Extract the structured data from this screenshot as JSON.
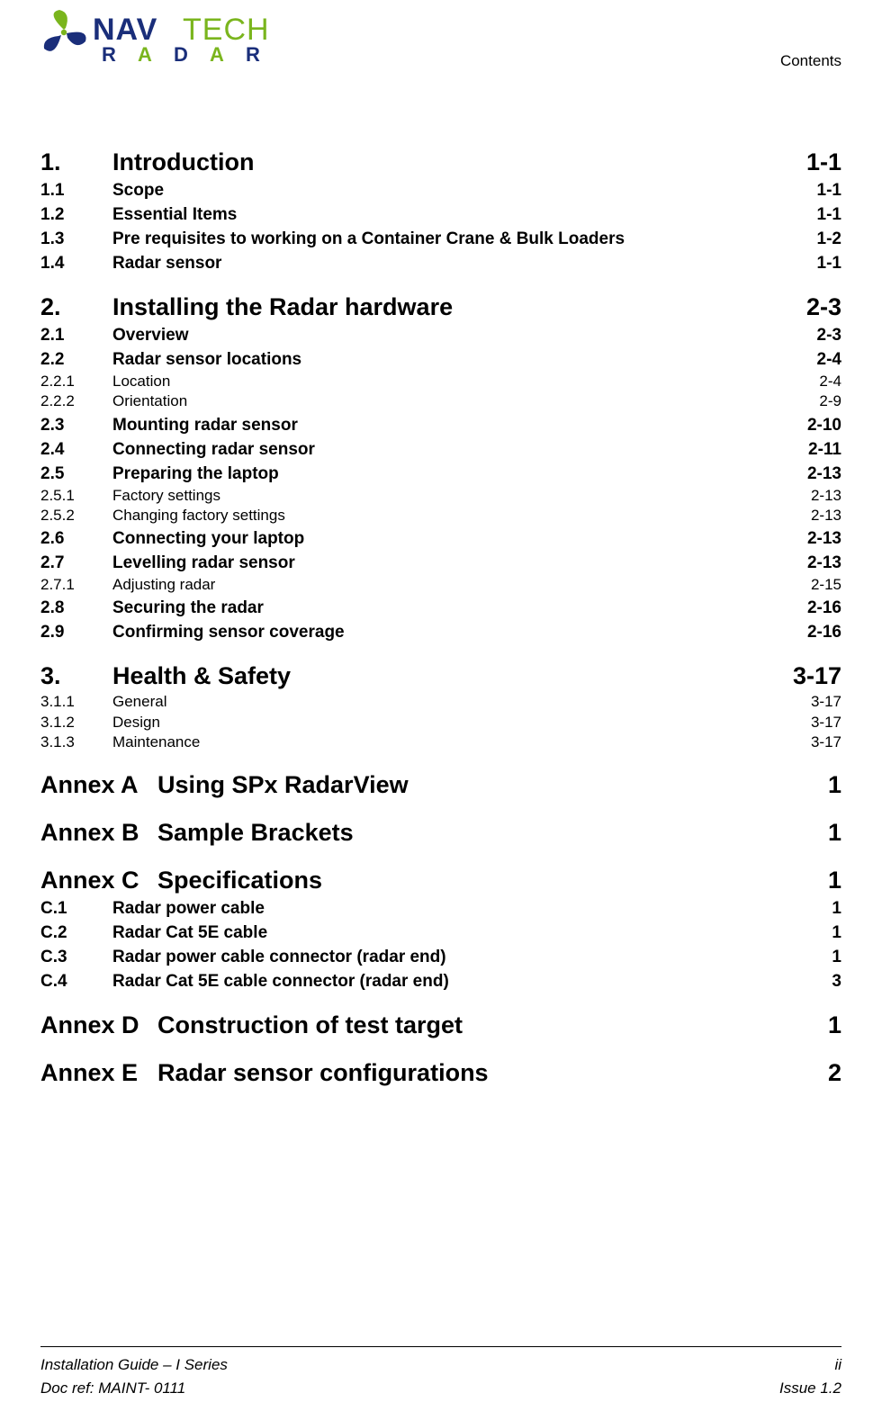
{
  "header": {
    "section_label": "Contents"
  },
  "logo": {
    "nav_color": "#1a2e7a",
    "tech_color": "#7ab51d",
    "radar_colors": [
      "#1a2e7a",
      "#7ab51d"
    ]
  },
  "toc": [
    {
      "level": 1,
      "num": "1.",
      "title": "Introduction",
      "page": "1-1"
    },
    {
      "level": 2,
      "num": "1.1",
      "title": "Scope",
      "page": "1-1"
    },
    {
      "level": 2,
      "num": "1.2",
      "title": "Essential Items",
      "page": "1-1"
    },
    {
      "level": 2,
      "num": "1.3",
      "title": "Pre requisites to working on a Container Crane & Bulk Loaders",
      "page": "1-2"
    },
    {
      "level": 2,
      "num": "1.4",
      "title": "Radar sensor",
      "page": "1-1"
    },
    {
      "level": 1,
      "num": "2.",
      "title": "Installing the Radar hardware",
      "page": "2-3"
    },
    {
      "level": 2,
      "num": "2.1",
      "title": "Overview",
      "page": "2-3"
    },
    {
      "level": 2,
      "num": "2.2",
      "title": "Radar sensor locations",
      "page": "2-4"
    },
    {
      "level": 3,
      "num": "2.2.1",
      "title": "Location",
      "page": "2-4"
    },
    {
      "level": 3,
      "num": "2.2.2",
      "title": "Orientation",
      "page": "2-9"
    },
    {
      "level": 2,
      "num": "2.3",
      "title": "Mounting radar sensor",
      "page": "2-10"
    },
    {
      "level": 2,
      "num": "2.4",
      "title": "Connecting radar sensor",
      "page": "2-11"
    },
    {
      "level": 2,
      "num": "2.5",
      "title": "Preparing the laptop",
      "page": "2-13"
    },
    {
      "level": 3,
      "num": "2.5.1",
      "title": "Factory settings",
      "page": "2-13"
    },
    {
      "level": 3,
      "num": "2.5.2",
      "title": "Changing factory settings",
      "page": "2-13"
    },
    {
      "level": 2,
      "num": "2.6",
      "title": "Connecting your laptop",
      "page": "2-13"
    },
    {
      "level": 2,
      "num": "2.7",
      "title": "Levelling radar sensor",
      "page": "2-13"
    },
    {
      "level": 3,
      "num": "2.7.1",
      "title": "Adjusting radar",
      "page": "2-15"
    },
    {
      "level": 2,
      "num": "2.8",
      "title": "Securing the radar",
      "page": "2-16"
    },
    {
      "level": 2,
      "num": "2.9",
      "title": "Confirming sensor coverage",
      "page": "2-16"
    },
    {
      "level": 1,
      "num": "3.",
      "title": "Health & Safety",
      "page": "3-17"
    },
    {
      "level": 3,
      "num": "3.1.1",
      "title": "General",
      "page": "3-17"
    },
    {
      "level": 3,
      "num": "3.1.2",
      "title": "Design",
      "page": "3-17"
    },
    {
      "level": 3,
      "num": "3.1.3",
      "title": "Maintenance",
      "page": "3-17"
    },
    {
      "level": 1,
      "annex": true,
      "num": "Annex A",
      "title": "Using SPx RadarView",
      "page": "1"
    },
    {
      "level": 1,
      "annex": true,
      "num": "Annex B",
      "title": " Sample Brackets",
      "page": "1"
    },
    {
      "level": 1,
      "annex": true,
      "num": "Annex C",
      "title": "Specifications",
      "page": "1"
    },
    {
      "level": 2,
      "num": "C.1",
      "title": "Radar power cable",
      "page": "1"
    },
    {
      "level": 2,
      "num": "C.2",
      "title": "Radar Cat 5E cable",
      "page": "1"
    },
    {
      "level": 2,
      "num": "C.3",
      "title": "Radar power cable connector (radar end)",
      "page": "1"
    },
    {
      "level": 2,
      "num": "C.4",
      "title": "Radar Cat 5E cable connector (radar end)",
      "page": "3"
    },
    {
      "level": 1,
      "annex": true,
      "num": "Annex D",
      "title": "Construction of test target",
      "page": "1"
    },
    {
      "level": 1,
      "annex": true,
      "num": "Annex E",
      "title": "Radar sensor configurations",
      "page": "2"
    }
  ],
  "footer": {
    "guide_title": "Installation Guide – I Series",
    "page_num": "ii",
    "doc_ref": "Doc ref: MAINT- 0111",
    "issue": "Issue 1.2"
  }
}
